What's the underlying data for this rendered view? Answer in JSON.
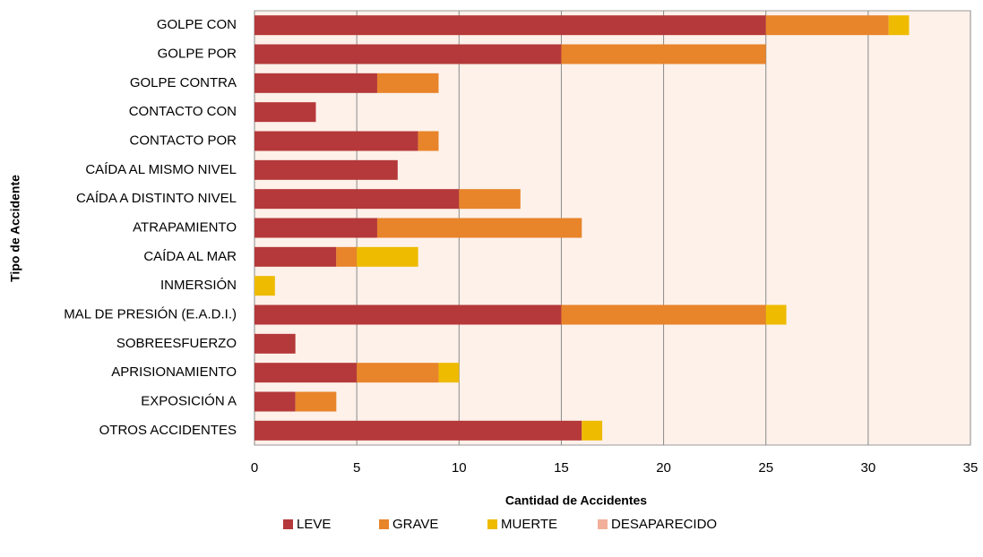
{
  "chart_data": {
    "type": "stacked-bar-horizontal",
    "x_label": "Cantidad de Accidentes",
    "y_label": "Tipo de Accidente",
    "categories": [
      "GOLPE CON",
      "GOLPE POR",
      "GOLPE CONTRA",
      "CONTACTO CON",
      "CONTACTO POR",
      "CAÍDA AL MISMO NIVEL",
      "CAÍDA A DISTINTO NIVEL",
      "ATRAPAMIENTO",
      "CAÍDA AL MAR",
      "INMERSIÓN",
      "MAL DE PRESIÓN (E.A.D.I.)",
      "SOBREESFUERZO",
      "APRISIONAMIENTO",
      "EXPOSICIÓN A",
      "OTROS ACCIDENTES"
    ],
    "series": [
      {
        "name": "LEVE",
        "color": "#b5393a",
        "values": [
          25,
          15,
          6,
          3,
          8,
          7,
          10,
          6,
          4,
          0,
          15,
          2,
          5,
          2,
          16
        ]
      },
      {
        "name": "GRAVE",
        "color": "#e8842a",
        "values": [
          6,
          10,
          3,
          0,
          1,
          0,
          3,
          10,
          1,
          0,
          10,
          0,
          4,
          2,
          0
        ]
      },
      {
        "name": "MUERTE",
        "color": "#eebb00",
        "values": [
          1,
          0,
          0,
          0,
          0,
          0,
          0,
          0,
          3,
          1,
          1,
          0,
          1,
          0,
          1
        ]
      },
      {
        "name": "DESAPARECIDO",
        "color": "#f2b09a",
        "values": [
          0,
          0,
          0,
          0,
          0,
          0,
          0,
          0,
          0,
          0,
          0,
          0,
          0,
          0,
          0
        ]
      }
    ],
    "xlim": [
      0,
      35
    ],
    "xticks": [
      0,
      5,
      10,
      15,
      20,
      25,
      30,
      35
    ],
    "grid": true,
    "legend": "bottom"
  }
}
